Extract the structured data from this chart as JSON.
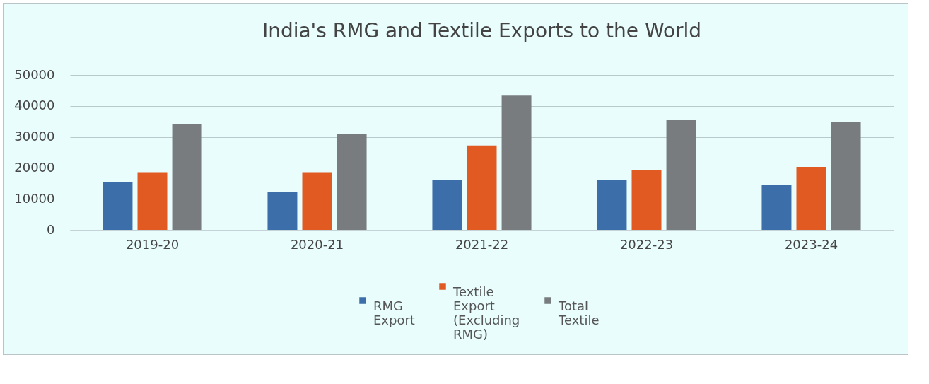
{
  "chart_data": {
    "type": "bar",
    "title": "India's RMG and Textile Exports to the World",
    "categories": [
      "2019-20",
      "2020-21",
      "2021-22",
      "2022-23",
      "2023-24"
    ],
    "series": [
      {
        "name": "RMG Export",
        "color": "#3c6eaa",
        "values": [
          15500,
          12300,
          16000,
          16000,
          14400
        ]
      },
      {
        "name": "Textile Export (Excluding RMG)",
        "color": "#e05a22",
        "values": [
          18600,
          18600,
          27200,
          19400,
          20300
        ]
      },
      {
        "name": "Total Textile",
        "color": "#787c7e",
        "values": [
          34200,
          30900,
          43300,
          35400,
          34800
        ]
      }
    ],
    "ylim": [
      0,
      50000
    ],
    "yticks": [
      0,
      10000,
      20000,
      30000,
      40000,
      50000
    ],
    "grid": "y",
    "legend": "bottom"
  }
}
